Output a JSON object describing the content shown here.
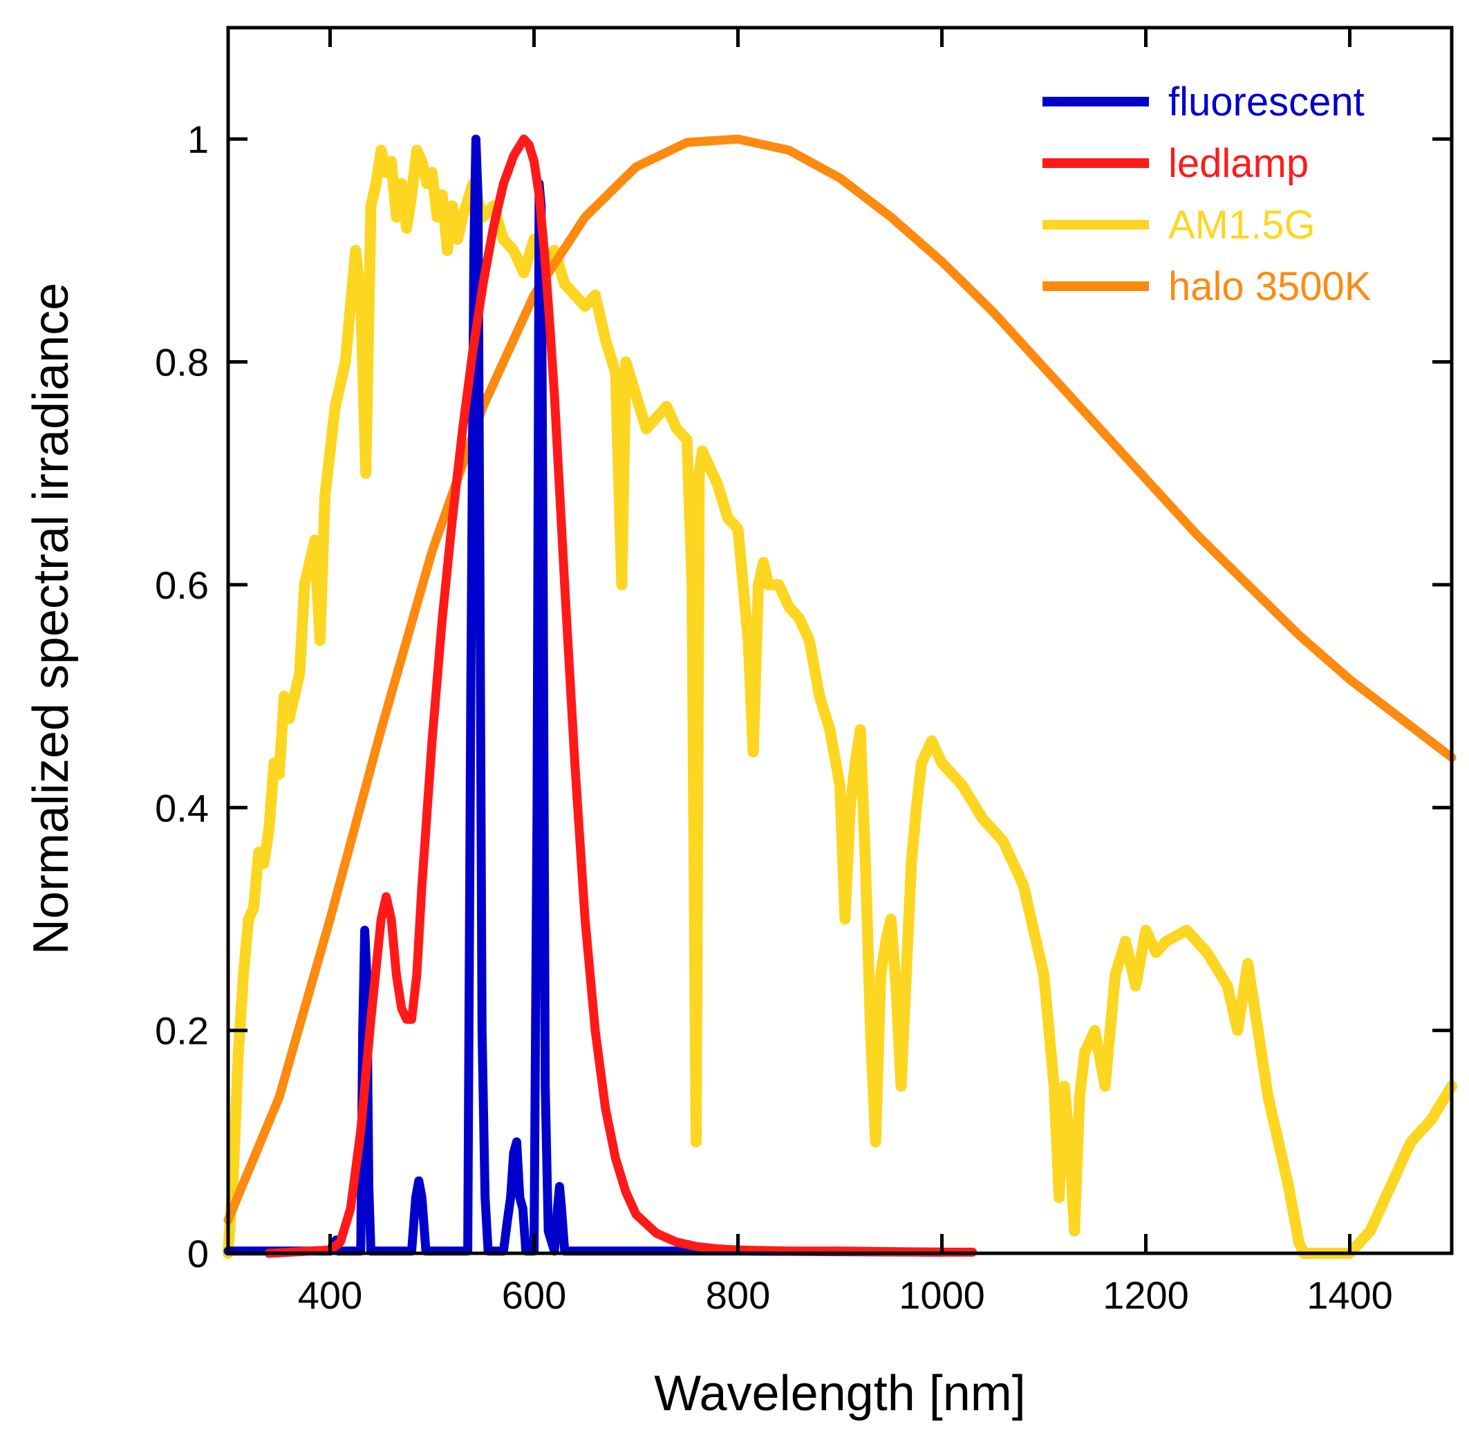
{
  "chart_data": {
    "type": "line",
    "xlabel": "Wavelength [nm]",
    "ylabel": "Normalized spectral irradiance",
    "xlim": [
      300,
      1500
    ],
    "ylim": [
      0,
      1.1
    ],
    "x_ticks": [
      400,
      600,
      800,
      1000,
      1200,
      1400
    ],
    "y_ticks": [
      0,
      0.2,
      0.4,
      0.6,
      0.8,
      1
    ],
    "y_tick_labels": [
      "0",
      "0.2",
      "0.4",
      "0.6",
      "0.8",
      "1"
    ],
    "legend_position": "top-right",
    "series": [
      {
        "name": "fluorescent",
        "color": "#0000cc",
        "x": [
          300,
          400,
          404,
          406,
          408,
          430,
          432,
          434,
          436,
          438,
          440,
          480,
          484,
          487,
          490,
          494,
          535,
          538,
          541,
          543,
          545,
          547,
          549,
          552,
          555,
          570,
          574,
          577,
          580,
          583,
          586,
          589,
          592,
          600,
          603,
          605,
          607,
          609,
          611,
          614,
          620,
          623,
          625,
          627,
          630,
          660,
          800,
          1000
        ],
        "values": [
          0.002,
          0.002,
          0.01,
          0.012,
          0.002,
          0.002,
          0.2,
          0.29,
          0.25,
          0.06,
          0.002,
          0.002,
          0.05,
          0.065,
          0.05,
          0.002,
          0.002,
          0.5,
          0.9,
          1.0,
          0.95,
          0.6,
          0.2,
          0.05,
          0.002,
          0.002,
          0.03,
          0.05,
          0.09,
          0.1,
          0.05,
          0.04,
          0.002,
          0.002,
          0.4,
          0.96,
          0.94,
          0.6,
          0.15,
          0.02,
          0.002,
          0.04,
          0.06,
          0.04,
          0.002,
          0.002,
          0.002,
          0.001
        ]
      },
      {
        "name": "ledlamp",
        "color": "#ff1a1a",
        "x": [
          340,
          400,
          410,
          420,
          430,
          440,
          450,
          455,
          460,
          465,
          470,
          475,
          480,
          485,
          490,
          500,
          510,
          520,
          530,
          540,
          550,
          560,
          570,
          580,
          590,
          595,
          600,
          605,
          610,
          615,
          620,
          630,
          640,
          650,
          660,
          670,
          680,
          690,
          700,
          720,
          740,
          760,
          780,
          800,
          850,
          900,
          1000,
          1030
        ],
        "values": [
          0.0,
          0.003,
          0.01,
          0.04,
          0.11,
          0.21,
          0.3,
          0.32,
          0.3,
          0.25,
          0.22,
          0.21,
          0.21,
          0.25,
          0.33,
          0.46,
          0.57,
          0.66,
          0.74,
          0.81,
          0.87,
          0.92,
          0.96,
          0.985,
          1.0,
          0.995,
          0.98,
          0.95,
          0.9,
          0.84,
          0.77,
          0.6,
          0.44,
          0.3,
          0.2,
          0.13,
          0.085,
          0.055,
          0.035,
          0.018,
          0.01,
          0.006,
          0.004,
          0.003,
          0.002,
          0.002,
          0.001,
          0.001
        ]
      },
      {
        "name": "AM1.5G",
        "color": "#fdd621",
        "x": [
          300,
          305,
          310,
          315,
          320,
          325,
          330,
          335,
          340,
          345,
          350,
          355,
          360,
          365,
          370,
          375,
          380,
          385,
          390,
          395,
          400,
          405,
          410,
          415,
          420,
          425,
          430,
          435,
          440,
          445,
          450,
          455,
          460,
          465,
          470,
          475,
          480,
          485,
          490,
          495,
          500,
          505,
          510,
          515,
          520,
          525,
          530,
          540,
          550,
          560,
          570,
          580,
          590,
          600,
          610,
          620,
          630,
          640,
          650,
          660,
          670,
          680,
          686,
          690,
          700,
          710,
          720,
          730,
          740,
          750,
          755,
          759,
          762,
          765,
          770,
          780,
          790,
          800,
          810,
          815,
          820,
          825,
          830,
          840,
          850,
          860,
          870,
          880,
          890,
          900,
          905,
          910,
          915,
          920,
          925,
          930,
          935,
          940,
          945,
          950,
          955,
          960,
          965,
          970,
          975,
          980,
          990,
          1000,
          1020,
          1040,
          1060,
          1080,
          1100,
          1110,
          1115,
          1120,
          1125,
          1130,
          1135,
          1140,
          1150,
          1160,
          1170,
          1180,
          1190,
          1200,
          1210,
          1220,
          1240,
          1260,
          1280,
          1290,
          1300,
          1310,
          1320,
          1330,
          1340,
          1350,
          1355,
          1360,
          1380,
          1400,
          1420,
          1440,
          1460,
          1480,
          1500
        ],
        "values": [
          0.0,
          0.07,
          0.18,
          0.25,
          0.3,
          0.31,
          0.36,
          0.35,
          0.38,
          0.44,
          0.43,
          0.5,
          0.48,
          0.5,
          0.52,
          0.6,
          0.62,
          0.64,
          0.55,
          0.68,
          0.72,
          0.76,
          0.78,
          0.8,
          0.85,
          0.9,
          0.86,
          0.7,
          0.94,
          0.96,
          0.99,
          0.97,
          0.98,
          0.93,
          0.96,
          0.92,
          0.95,
          0.99,
          0.98,
          0.96,
          0.97,
          0.93,
          0.95,
          0.9,
          0.94,
          0.91,
          0.93,
          0.96,
          0.93,
          0.94,
          0.91,
          0.9,
          0.88,
          0.91,
          0.89,
          0.9,
          0.87,
          0.86,
          0.85,
          0.86,
          0.82,
          0.79,
          0.6,
          0.8,
          0.77,
          0.74,
          0.75,
          0.76,
          0.74,
          0.73,
          0.6,
          0.1,
          0.7,
          0.72,
          0.71,
          0.69,
          0.66,
          0.65,
          0.55,
          0.45,
          0.6,
          0.62,
          0.6,
          0.6,
          0.58,
          0.57,
          0.55,
          0.5,
          0.47,
          0.42,
          0.3,
          0.4,
          0.44,
          0.47,
          0.35,
          0.2,
          0.1,
          0.25,
          0.28,
          0.3,
          0.24,
          0.15,
          0.25,
          0.35,
          0.4,
          0.44,
          0.46,
          0.44,
          0.42,
          0.39,
          0.37,
          0.33,
          0.25,
          0.15,
          0.05,
          0.15,
          0.1,
          0.02,
          0.14,
          0.18,
          0.2,
          0.15,
          0.25,
          0.28,
          0.24,
          0.29,
          0.27,
          0.28,
          0.29,
          0.27,
          0.24,
          0.2,
          0.26,
          0.2,
          0.14,
          0.1,
          0.06,
          0.01,
          0.0,
          0.0,
          0.0,
          0.0,
          0.02,
          0.06,
          0.1,
          0.12,
          0.15
        ]
      },
      {
        "name": "halo 3500K",
        "color": "#fe8a10",
        "x": [
          300,
          350,
          400,
          450,
          500,
          550,
          600,
          650,
          700,
          750,
          800,
          850,
          900,
          950,
          1000,
          1050,
          1100,
          1150,
          1200,
          1250,
          1300,
          1350,
          1400,
          1450,
          1500
        ],
        "values": [
          0.03,
          0.14,
          0.3,
          0.47,
          0.63,
          0.76,
          0.86,
          0.93,
          0.975,
          0.997,
          1.0,
          0.99,
          0.965,
          0.93,
          0.89,
          0.845,
          0.795,
          0.745,
          0.695,
          0.645,
          0.6,
          0.555,
          0.515,
          0.48,
          0.445
        ]
      }
    ]
  }
}
